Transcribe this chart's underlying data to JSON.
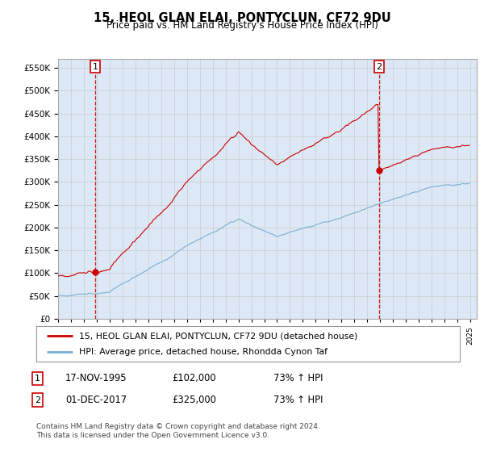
{
  "title": "15, HEOL GLAN ELAI, PONTYCLUN, CF72 9DU",
  "subtitle": "Price paid vs. HM Land Registry's House Price Index (HPI)",
  "legend_label_red": "15, HEOL GLAN ELAI, PONTYCLUN, CF72 9DU (detached house)",
  "legend_label_blue": "HPI: Average price, detached house, Rhondda Cynon Taf",
  "annotation1_date": "17-NOV-1995",
  "annotation1_price": "£102,000",
  "annotation1_hpi": "73% ↑ HPI",
  "annotation2_date": "01-DEC-2017",
  "annotation2_price": "£325,000",
  "annotation2_hpi": "73% ↑ HPI",
  "footnote": "Contains HM Land Registry data © Crown copyright and database right 2024.\nThis data is licensed under the Open Government Licence v3.0.",
  "sale1_year": 1995.88,
  "sale1_price": 102000,
  "sale2_year": 2017.92,
  "sale2_price": 325000,
  "ylim_min": 0,
  "ylim_max": 570000,
  "xlim_min": 1993.0,
  "xlim_max": 2025.5,
  "hpi_color": "#7aaed4",
  "sale_color": "#cc0000",
  "grid_color": "#cccccc",
  "bg_color": "#ffffff",
  "plot_bg_color": "#dce8f5"
}
